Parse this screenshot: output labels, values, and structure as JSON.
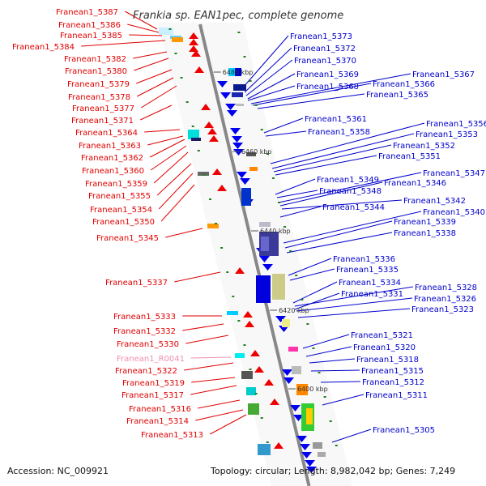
{
  "title": "Frankia sp. EAN1pec, complete genome",
  "accession": "Accession: NC_009921",
  "summary": "Topology: circular; Length: 8,982,042 bp; Genes: 7,249",
  "colors": {
    "left_label": "#e00000",
    "right_label": "#0000cc",
    "rna_label": "#f090b0",
    "backbone": "#888888",
    "forward_gene": "#ee0000",
    "reverse_gene": "#0000ee",
    "tick_mark": "#208020"
  },
  "scale_marks": [
    "6480 kbp",
    "6460 kbp",
    "6440 kbp",
    "6420 kbp",
    "6400 kbp"
  ],
  "left_genes": [
    "Franean1_5387",
    "Franean1_5386",
    "Franean1_5385",
    "Franean1_5384",
    "Franean1_5382",
    "Franean1_5380",
    "Franean1_5379",
    "Franean1_5378",
    "Franean1_5377",
    "Franean1_5371",
    "Franean1_5364",
    "Franean1_5363",
    "Franean1_5362",
    "Franean1_5360",
    "Franean1_5359",
    "Franean1_5355",
    "Franean1_5354",
    "Franean1_5350",
    "Franean1_5345",
    "Franean1_5337",
    "Franean1_5333",
    "Franean1_5332",
    "Franean1_5330",
    "Franean1_R0041",
    "Franean1_5322",
    "Franean1_5319",
    "Franean1_5317",
    "Franean1_5316",
    "Franean1_5314",
    "Franean1_5313"
  ],
  "right_genes": [
    "Franean1_5373",
    "Franean1_5372",
    "Franean1_5370",
    "Franean1_5369",
    "Franean1_5367",
    "Franean1_5368",
    "Franean1_5366",
    "Franean1_5365",
    "Franean1_5361",
    "Franean1_5356",
    "Franean1_5358",
    "Franean1_5353",
    "Franean1_5352",
    "Franean1_5351",
    "Franean1_5347",
    "Franean1_5349",
    "Franean1_5346",
    "Franean1_5348",
    "Franean1_5342",
    "Franean1_5344",
    "Franean1_5340",
    "Franean1_5339",
    "Franean1_5338",
    "Franean1_5336",
    "Franean1_5335",
    "Franean1_5334",
    "Franean1_5328",
    "Franean1_5331",
    "Franean1_5326",
    "Franean1_5323",
    "Franean1_5321",
    "Franean1_5320",
    "Franean1_5318",
    "Franean1_5315",
    "Franean1_5312",
    "Franean1_5311",
    "Franean1_5305"
  ]
}
